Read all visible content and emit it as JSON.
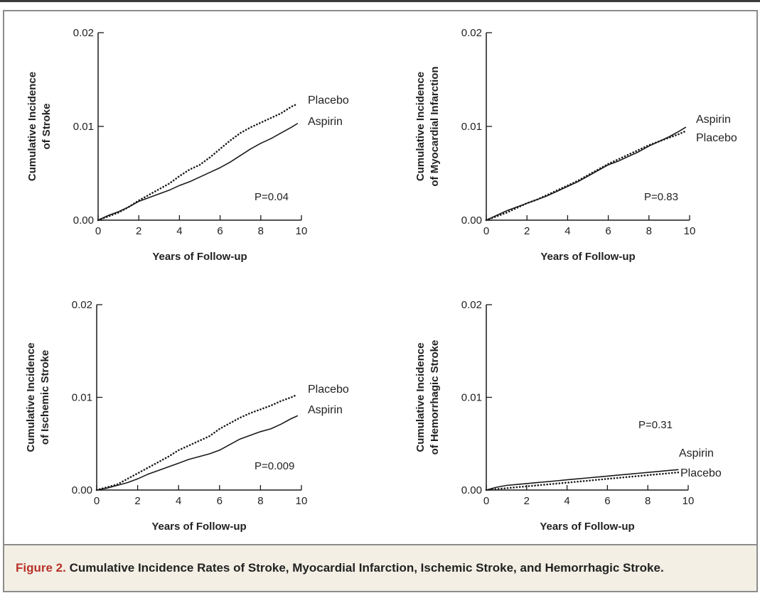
{
  "caption": {
    "label": "Figure 2.",
    "text": "Cumulative Incidence Rates of Stroke, Myocardial Infarction, Ischemic Stroke, and Hemorrhagic Stroke."
  },
  "colors": {
    "line": "#1a1a1a",
    "caption_label": "#b8322a",
    "caption_bg": "#f3efe4",
    "frame": "#8c8c8c"
  },
  "chart_data": [
    {
      "type": "line",
      "id": "stroke",
      "xlabel": "Years of Follow-up",
      "ylabel": [
        "Cumulative Incidence",
        "of Stroke"
      ],
      "xlim": [
        0,
        10
      ],
      "ylim": [
        0,
        0.02
      ],
      "xticks": [
        "0",
        "2",
        "4",
        "6",
        "8",
        "10"
      ],
      "yticks": [
        "0.00",
        "0.01",
        "0.02"
      ],
      "p_value": "P=0.04",
      "series": [
        {
          "name": "Placebo",
          "style": "dotted",
          "x": [
            0,
            0.5,
            1,
            1.5,
            2,
            2.5,
            3,
            3.5,
            4,
            4.5,
            5,
            5.5,
            6,
            6.5,
            7,
            7.5,
            8,
            8.5,
            9,
            9.5,
            9.8
          ],
          "y": [
            0,
            0.0004,
            0.0008,
            0.0014,
            0.0021,
            0.0027,
            0.0033,
            0.0039,
            0.0047,
            0.0054,
            0.0059,
            0.0067,
            0.0076,
            0.0085,
            0.0093,
            0.0099,
            0.0104,
            0.0109,
            0.0114,
            0.0121,
            0.0124
          ]
        },
        {
          "name": "Aspirin",
          "style": "solid",
          "x": [
            0,
            0.5,
            1,
            1.5,
            2,
            2.5,
            3,
            3.5,
            4,
            4.5,
            5,
            5.5,
            6,
            6.5,
            7,
            7.5,
            8,
            8.5,
            9,
            9.5,
            9.8
          ],
          "y": [
            0,
            0.0005,
            0.0009,
            0.0014,
            0.002,
            0.0024,
            0.0028,
            0.0032,
            0.0037,
            0.0041,
            0.0046,
            0.0051,
            0.0056,
            0.0062,
            0.0069,
            0.0076,
            0.0082,
            0.0087,
            0.0093,
            0.0099,
            0.0103
          ]
        }
      ]
    },
    {
      "type": "line",
      "id": "mi",
      "xlabel": "Years of Follow-up",
      "ylabel": [
        "Cumulative Incidence",
        "of Myocardial Infarction"
      ],
      "xlim": [
        0,
        10
      ],
      "ylim": [
        0,
        0.02
      ],
      "xticks": [
        "0",
        "2",
        "4",
        "6",
        "8",
        "10"
      ],
      "yticks": [
        "0.00",
        "0.01",
        "0.02"
      ],
      "p_value": "P=0.83",
      "series": [
        {
          "name": "Aspirin",
          "style": "solid",
          "x": [
            0,
            0.5,
            1,
            1.5,
            2,
            2.5,
            3,
            3.5,
            4,
            4.5,
            5,
            5.5,
            6,
            6.5,
            7,
            7.5,
            8,
            8.5,
            9,
            9.5,
            9.8
          ],
          "y": [
            0,
            0.0005,
            0.001,
            0.0014,
            0.0018,
            0.0022,
            0.0026,
            0.0031,
            0.0036,
            0.0041,
            0.0047,
            0.0053,
            0.0059,
            0.0063,
            0.0068,
            0.0073,
            0.0079,
            0.0084,
            0.0089,
            0.0095,
            0.0099
          ]
        },
        {
          "name": "Placebo",
          "style": "dotted",
          "x": [
            0,
            0.5,
            1,
            1.5,
            2,
            2.5,
            3,
            3.5,
            4,
            4.5,
            5,
            5.5,
            6,
            6.5,
            7,
            7.5,
            8,
            8.5,
            9,
            9.5,
            9.8
          ],
          "y": [
            0,
            0.0004,
            0.0008,
            0.0013,
            0.0018,
            0.0022,
            0.0027,
            0.0032,
            0.0037,
            0.0042,
            0.0048,
            0.0054,
            0.006,
            0.0065,
            0.007,
            0.0075,
            0.008,
            0.0084,
            0.0088,
            0.0092,
            0.0095
          ]
        }
      ]
    },
    {
      "type": "line",
      "id": "ischemic",
      "xlabel": "Years of Follow-up",
      "ylabel": [
        "Cumulative Incidence",
        "of Ischemic Stroke"
      ],
      "xlim": [
        0,
        10
      ],
      "ylim": [
        0,
        0.02
      ],
      "xticks": [
        "0",
        "2",
        "4",
        "6",
        "8",
        "10"
      ],
      "yticks": [
        "0.00",
        "0.01",
        "0.02"
      ],
      "p_value": "P=0.009",
      "series": [
        {
          "name": "Placebo",
          "style": "dotted",
          "x": [
            0,
            0.5,
            1,
            1.5,
            2,
            2.5,
            3,
            3.5,
            4,
            4.5,
            5,
            5.5,
            6,
            6.5,
            7,
            7.5,
            8,
            8.5,
            9,
            9.5,
            9.8
          ],
          "y": [
            0,
            0.0003,
            0.0006,
            0.0012,
            0.0018,
            0.0024,
            0.003,
            0.0036,
            0.0043,
            0.0048,
            0.0053,
            0.0058,
            0.0066,
            0.0072,
            0.0078,
            0.0083,
            0.0087,
            0.0091,
            0.0096,
            0.01,
            0.0103
          ]
        },
        {
          "name": "Aspirin",
          "style": "solid",
          "x": [
            0,
            0.5,
            1,
            1.5,
            2,
            2.5,
            3,
            3.5,
            4,
            4.5,
            5,
            5.5,
            6,
            6.5,
            7,
            7.5,
            8,
            8.5,
            9,
            9.5,
            9.8
          ],
          "y": [
            0,
            0.0002,
            0.0005,
            0.0008,
            0.0012,
            0.0017,
            0.0021,
            0.0025,
            0.0029,
            0.0033,
            0.0036,
            0.0039,
            0.0043,
            0.0049,
            0.0055,
            0.0059,
            0.0063,
            0.0066,
            0.0071,
            0.0077,
            0.008
          ]
        }
      ]
    },
    {
      "type": "line",
      "id": "hemorrhagic",
      "xlabel": "Years of Follow-up",
      "ylabel": [
        "Cumulative Incidence",
        "of Hemorrhagic Stroke"
      ],
      "xlim": [
        0,
        10
      ],
      "ylim": [
        0,
        0.02
      ],
      "xticks": [
        "0",
        "2",
        "4",
        "6",
        "8",
        "10"
      ],
      "yticks": [
        "0.00",
        "0.01",
        "0.02"
      ],
      "p_value": "P=0.31",
      "series": [
        {
          "name": "Aspirin",
          "style": "solid",
          "x": [
            0,
            0.5,
            1,
            1.5,
            2,
            2.5,
            3,
            3.5,
            4,
            4.5,
            5,
            5.5,
            6,
            6.5,
            7,
            7.5,
            8,
            8.5,
            9,
            9.5
          ],
          "y": [
            0,
            0.0003,
            0.0005,
            0.0006,
            0.0007,
            0.0008,
            0.0009,
            0.001,
            0.0011,
            0.0012,
            0.0013,
            0.0014,
            0.0015,
            0.0016,
            0.0017,
            0.0018,
            0.0019,
            0.002,
            0.0021,
            0.0022
          ]
        },
        {
          "name": "Placebo",
          "style": "dotted",
          "x": [
            0,
            0.5,
            1,
            1.5,
            2,
            2.5,
            3,
            3.5,
            4,
            4.5,
            5,
            5.5,
            6,
            6.5,
            7,
            7.5,
            8,
            8.5,
            9,
            9.5
          ],
          "y": [
            0,
            0.0001,
            0.0002,
            0.0003,
            0.0004,
            0.0005,
            0.0006,
            0.0007,
            0.0008,
            0.0009,
            0.001,
            0.0011,
            0.0012,
            0.0013,
            0.0014,
            0.0015,
            0.0016,
            0.0017,
            0.0018,
            0.0019
          ]
        }
      ]
    }
  ]
}
